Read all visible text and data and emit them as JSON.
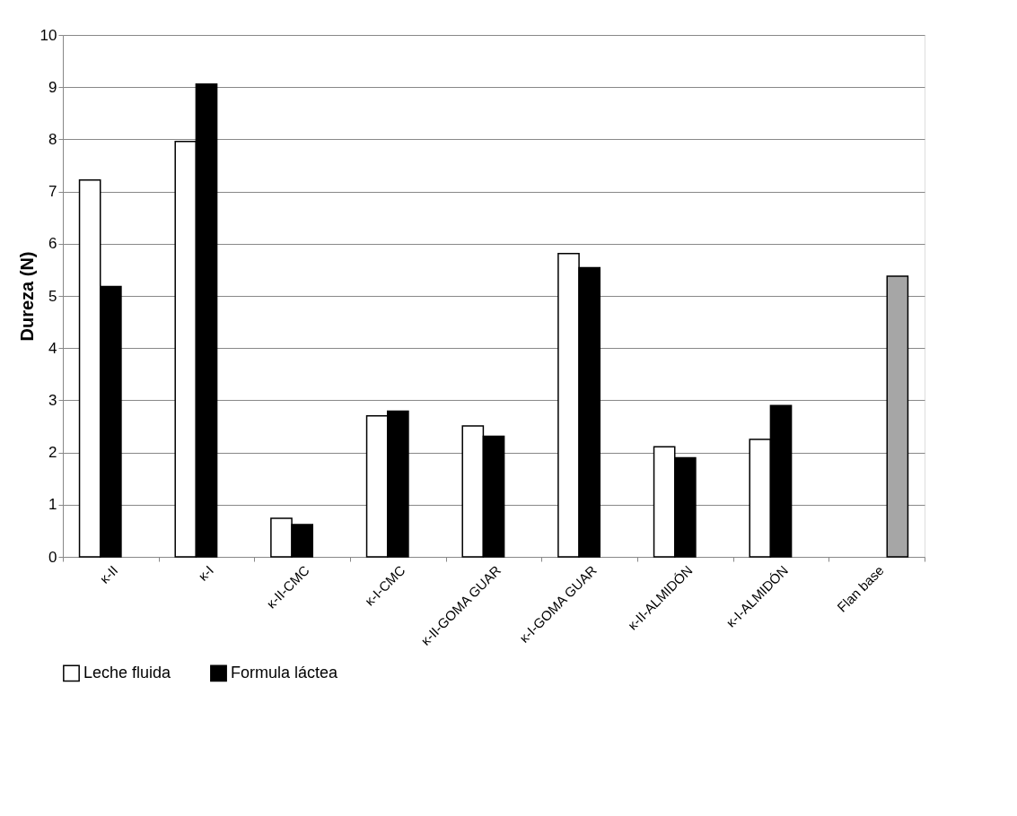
{
  "chart_data": {
    "type": "bar",
    "ylabel": "Dureza (N)",
    "categories": [
      "κ-II",
      "κ-I",
      "κ-II-CMC",
      "κ-I-CMC",
      "κ-II-GOMA GUAR",
      "κ-I-GOMA GUAR",
      "κ-II-ALMIDÓN",
      "κ-I-ALMIDÓN",
      "Flan base"
    ],
    "series": [
      {
        "name": "Leche fluida",
        "color": "#ffffff",
        "values": [
          7.22,
          7.96,
          0.74,
          2.7,
          2.51,
          5.81,
          2.11,
          2.25,
          null
        ]
      },
      {
        "name": "Formula láctea",
        "color": "#000000",
        "values": [
          5.18,
          9.06,
          0.62,
          2.79,
          2.31,
          5.54,
          1.9,
          2.9,
          null
        ]
      },
      {
        "color": "#a6a6a6",
        "values": [
          null,
          null,
          null,
          null,
          null,
          null,
          null,
          null,
          5.38
        ]
      }
    ],
    "ylim": [
      0,
      10
    ],
    "yticks": [
      0,
      1,
      2,
      3,
      4,
      5,
      6,
      7,
      8,
      9,
      10
    ],
    "grid": "y",
    "legend": "bottom"
  }
}
